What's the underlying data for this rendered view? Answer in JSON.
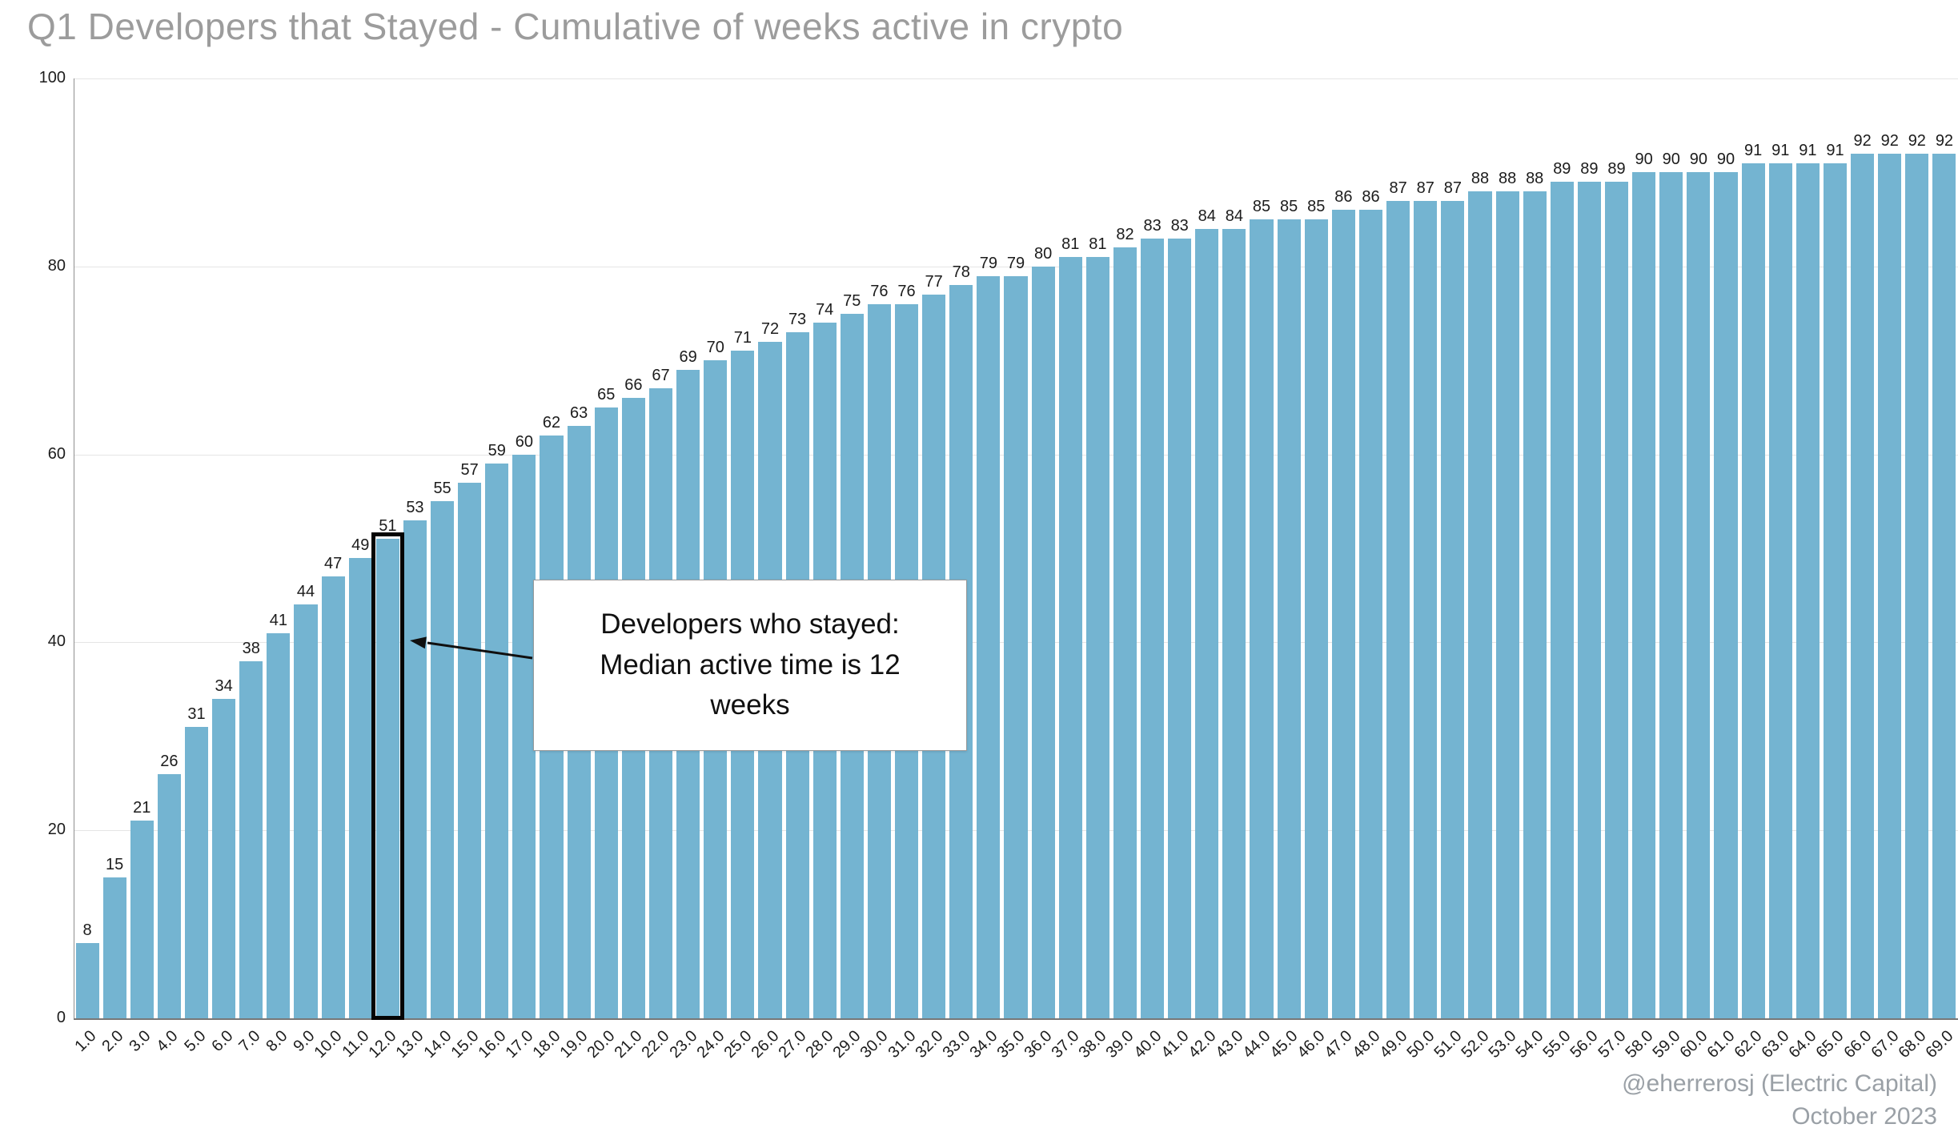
{
  "title": "Q1 Developers that Stayed - Cumulative of weeks active in crypto",
  "footer": {
    "credit": "@eherrerosj (Electric Capital)",
    "date": "October 2023"
  },
  "annotation": {
    "text": "Developers who stayed:\nMedian active time is 12\nweeks"
  },
  "chart_data": {
    "type": "bar",
    "title": "Q1 Developers that Stayed - Cumulative of weeks active in crypto",
    "xlabel": "",
    "ylabel": "",
    "ylim": [
      0,
      100
    ],
    "yticks": [
      0,
      20,
      40,
      60,
      80,
      100
    ],
    "grid": "horizontal",
    "legend": "none",
    "bar_color": "#74b4d1",
    "highlight": {
      "index": 11,
      "category": "12.0",
      "value": 51,
      "note": "Developers who stayed: Median active time is 12 weeks"
    },
    "categories": [
      "1.0",
      "2.0",
      "3.0",
      "4.0",
      "5.0",
      "6.0",
      "7.0",
      "8.0",
      "9.0",
      "10.0",
      "11.0",
      "12.0",
      "13.0",
      "14.0",
      "15.0",
      "16.0",
      "17.0",
      "18.0",
      "19.0",
      "20.0",
      "21.0",
      "22.0",
      "23.0",
      "24.0",
      "25.0",
      "26.0",
      "27.0",
      "28.0",
      "29.0",
      "30.0",
      "31.0",
      "32.0",
      "33.0",
      "34.0",
      "35.0",
      "36.0",
      "37.0",
      "38.0",
      "39.0",
      "40.0",
      "41.0",
      "42.0",
      "43.0",
      "44.0",
      "45.0",
      "46.0",
      "47.0",
      "48.0",
      "49.0",
      "50.0",
      "51.0",
      "52.0",
      "53.0",
      "54.0",
      "55.0",
      "56.0",
      "57.0",
      "58.0",
      "59.0",
      "60.0",
      "61.0",
      "62.0",
      "63.0",
      "64.0",
      "65.0",
      "66.0",
      "67.0",
      "68.0",
      "69.0"
    ],
    "values": [
      8,
      15,
      21,
      26,
      31,
      34,
      38,
      41,
      44,
      47,
      49,
      51,
      53,
      55,
      57,
      59,
      60,
      62,
      63,
      65,
      66,
      67,
      69,
      70,
      71,
      72,
      73,
      74,
      75,
      76,
      76,
      77,
      78,
      79,
      79,
      80,
      81,
      81,
      82,
      83,
      83,
      84,
      84,
      85,
      85,
      85,
      86,
      86,
      87,
      87,
      87,
      88,
      88,
      88,
      89,
      89,
      89,
      90,
      90,
      90,
      90,
      91,
      91,
      91,
      91,
      92,
      92,
      92,
      92
    ]
  }
}
